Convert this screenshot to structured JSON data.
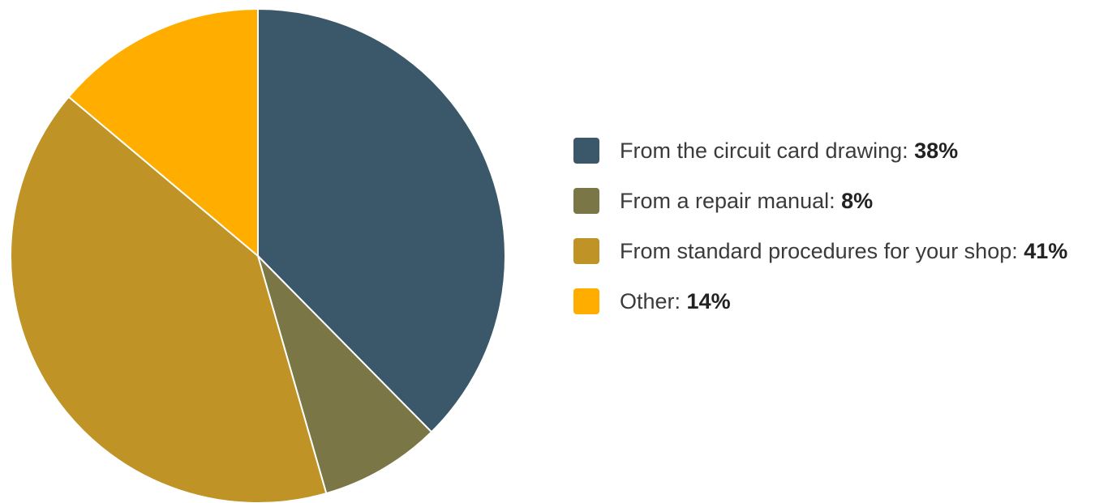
{
  "chart_data": {
    "type": "pie",
    "legend_position": "right",
    "slices": [
      {
        "label": "From the circuit card drawing",
        "value": 38,
        "display": "38%",
        "color": "#3a5869"
      },
      {
        "label": "From a repair manual",
        "value": 8,
        "display": "8%",
        "color": "#7a7645"
      },
      {
        "label": "From standard procedures for your shop",
        "value": 41,
        "display": "41%",
        "color": "#bf9325"
      },
      {
        "label": "Other",
        "value": 14,
        "display": "14%",
        "color": "#ffae00"
      }
    ]
  }
}
